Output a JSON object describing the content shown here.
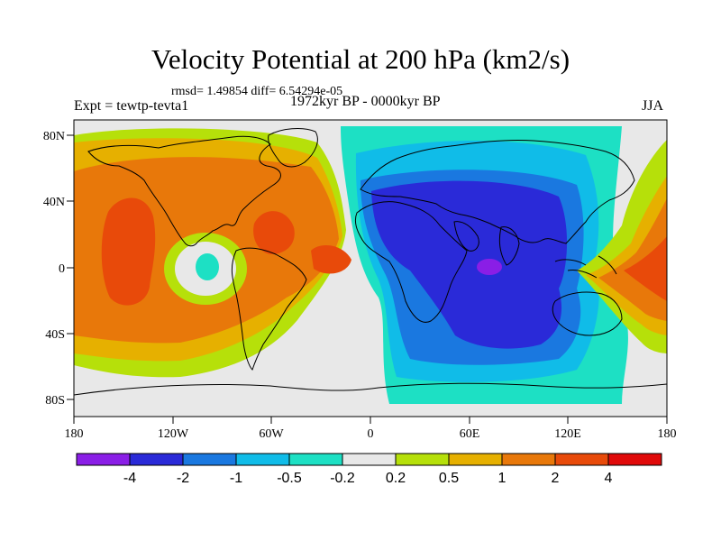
{
  "title": "Velocity Potential at 200 hPa (km2/s)",
  "stats": "rmsd= 1.49854  diff= 6.54294e-05",
  "left_label": "Expt = tewtp-tevta1",
  "center_label": "1972kyr BP - 0000kyr BP",
  "right_label": "JJA",
  "axes": {
    "lon_ticks": [
      "180",
      "120W",
      "60W",
      "0",
      "60E",
      "120E",
      "180"
    ],
    "lat_ticks": [
      "80N",
      "40N",
      "0",
      "40S",
      "80S"
    ]
  },
  "colorbar": {
    "levels": [
      "-4",
      "-2",
      "-1",
      "-0.5",
      "-0.2",
      "0.2",
      "0.5",
      "1",
      "2",
      "4"
    ],
    "colors": [
      "#8a1ee6",
      "#2a2ad8",
      "#1a78e0",
      "#10bce8",
      "#1de0c4",
      "#e8e8e8",
      "#b6e00a",
      "#e6b000",
      "#e8780a",
      "#e84a0a",
      "#e00a0a"
    ]
  },
  "map_colors": {
    "ocean_background": "#e8e8e8",
    "coast": "#000000"
  }
}
